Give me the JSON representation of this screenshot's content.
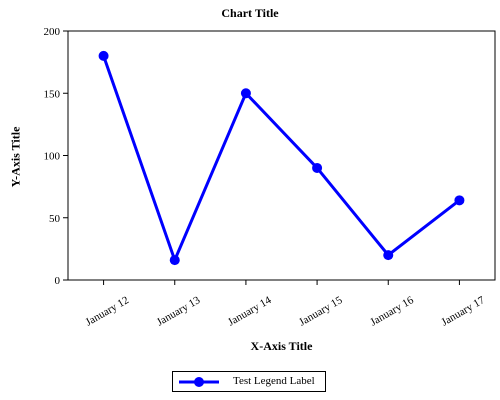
{
  "chart_data": {
    "type": "line",
    "title": "Chart Title",
    "xlabel": "X-Axis Title",
    "ylabel": "Y-Axis Title",
    "categories": [
      "January 12",
      "January 13",
      "January 14",
      "January 15",
      "January 16",
      "January 17"
    ],
    "series": [
      {
        "name": "Test Legend Label",
        "values": [
          180,
          16,
          150,
          90,
          20,
          64
        ],
        "color": "#0000ff",
        "marker": "circle"
      }
    ],
    "ylim": [
      0,
      200
    ],
    "yticks": [
      0,
      50,
      100,
      150,
      200
    ],
    "grid": false,
    "legend_position": "bottom-center"
  }
}
